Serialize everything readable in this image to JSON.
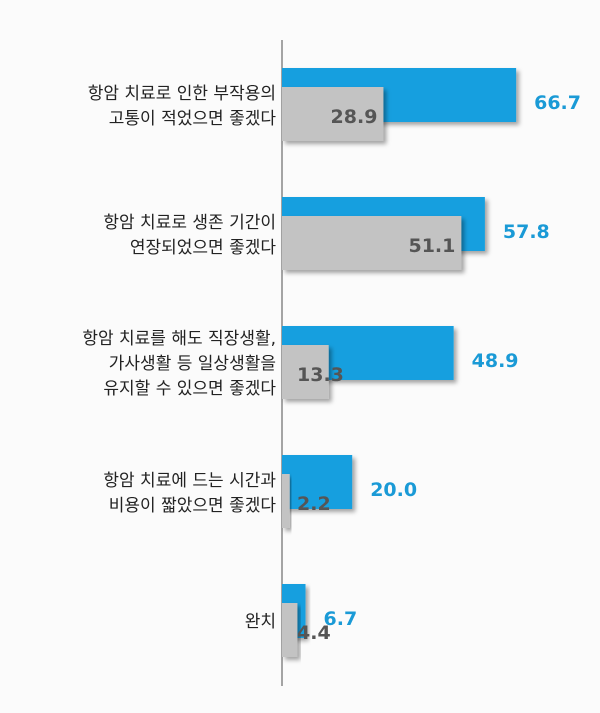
{
  "chart_data": {
    "type": "bar",
    "orientation": "horizontal",
    "categories": [
      "항암 치료로 인한 부작용의\n고통이 적었으면 좋겠다",
      "항암 치료로 생존 기간이\n연장되었으면 좋겠다",
      "항암 치료를 해도 직장생활,\n가사생활 등 일상생활을\n유지할 수 있으면 좋겠다",
      "항암 치료에 드는 시간과\n비용이 짧았으면 좋겠다",
      "완치"
    ],
    "series": [
      {
        "values": [
          66.7,
          57.8,
          48.9,
          20.0,
          6.7
        ],
        "color": "#139fdf",
        "label_color": "#1a9ad6"
      },
      {
        "values": [
          28.9,
          51.1,
          13.3,
          2.2,
          4.4
        ],
        "color": "#c3c3c3",
        "label_color": "#555555"
      }
    ],
    "xlim": [
      0,
      70
    ],
    "grid": false,
    "legend": "none"
  }
}
